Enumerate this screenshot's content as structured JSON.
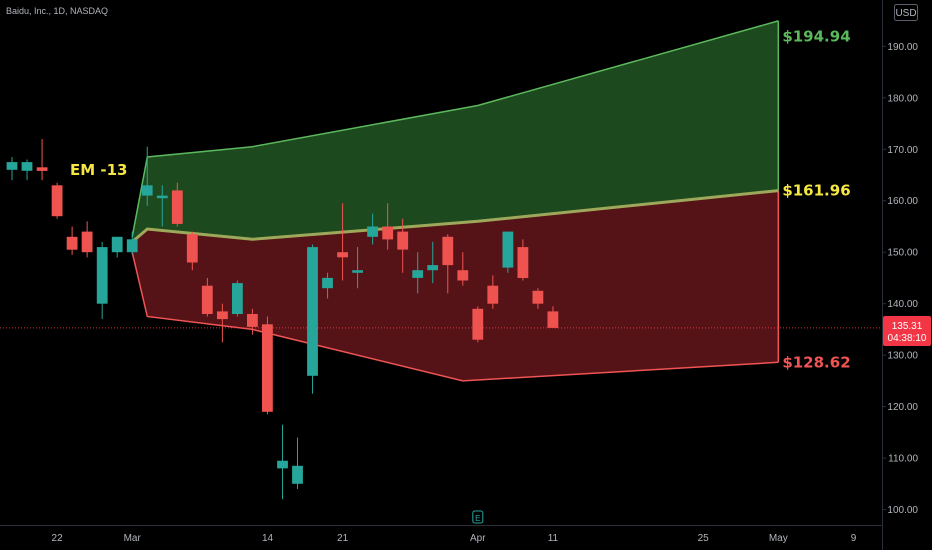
{
  "header": {
    "symbol_text": "Baidu, Inc., 1D, NASDAQ",
    "currency_button": "USD"
  },
  "annotation": {
    "em_label": "EM -13"
  },
  "projection": {
    "upper_label": "$194.94",
    "mid_label": "$161.96",
    "lower_label": "$128.62",
    "upper_color": "#5cb85c",
    "mid_color": "#f5e642",
    "lower_color": "#f05454"
  },
  "price_tag": {
    "price": "135.31",
    "countdown": "04:38:10",
    "color": "#f23645"
  },
  "event_markers": [
    {
      "letter": "E",
      "color": "#26a69a",
      "x": 30
    },
    {
      "letter": "E",
      "color": "#b84fd9",
      "x": 69
    }
  ],
  "chart_data": {
    "type": "candlestick",
    "x_axis": {
      "ticks": [
        {
          "x": 2,
          "label": "22"
        },
        {
          "x": 7,
          "label": "Mar"
        },
        {
          "x": 16,
          "label": "14"
        },
        {
          "x": 21,
          "label": "21"
        },
        {
          "x": 30,
          "label": "Apr"
        },
        {
          "x": 35,
          "label": "11"
        },
        {
          "x": 45,
          "label": "25"
        },
        {
          "x": 50,
          "label": "May"
        },
        {
          "x": 55,
          "label": "9"
        }
      ],
      "xlim": [
        -1.8,
        56.9
      ]
    },
    "y_axis": {
      "ylim": [
        97,
        199
      ],
      "ticks": [
        100,
        110,
        120,
        130,
        140,
        150,
        160,
        170,
        180,
        190
      ],
      "tick_labels": [
        "100.00",
        "110.00",
        "120.00",
        "130.00",
        "140.00",
        "150.00",
        "160.00",
        "170.00",
        "180.00",
        "190.00"
      ]
    },
    "current_price": 135.31,
    "candles": [
      {
        "x": -1,
        "o": 166.0,
        "h": 168.5,
        "l": 164.0,
        "c": 167.5
      },
      {
        "x": 0,
        "o": 165.8,
        "h": 168.0,
        "l": 164.0,
        "c": 167.5
      },
      {
        "x": 1,
        "o": 166.5,
        "h": 172.0,
        "l": 164.0,
        "c": 165.8
      },
      {
        "x": 2,
        "o": 163.0,
        "h": 163.5,
        "l": 156.5,
        "c": 157.0
      },
      {
        "x": 3,
        "o": 153.0,
        "h": 155.0,
        "l": 149.5,
        "c": 150.5
      },
      {
        "x": 4,
        "o": 154.0,
        "h": 156.0,
        "l": 149.0,
        "c": 150.0
      },
      {
        "x": 5,
        "o": 140.0,
        "h": 152.0,
        "l": 137.0,
        "c": 151.0
      },
      {
        "x": 6,
        "o": 150.0,
        "h": 153.0,
        "l": 149.0,
        "c": 153.0
      },
      {
        "x": 7,
        "o": 150.0,
        "h": 154.0,
        "l": 149.5,
        "c": 152.5
      },
      {
        "x": 8,
        "o": 161.0,
        "h": 170.5,
        "l": 159.0,
        "c": 163.0
      },
      {
        "x": 9,
        "o": 160.5,
        "h": 163.0,
        "l": 155.0,
        "c": 161.0
      },
      {
        "x": 10,
        "o": 162.0,
        "h": 163.5,
        "l": 155.0,
        "c": 155.5
      },
      {
        "x": 11,
        "o": 153.5,
        "h": 154.0,
        "l": 146.5,
        "c": 148.0
      },
      {
        "x": 12,
        "o": 143.5,
        "h": 145.0,
        "l": 137.5,
        "c": 138.0
      },
      {
        "x": 13,
        "o": 138.5,
        "h": 140.0,
        "l": 132.5,
        "c": 137.0
      },
      {
        "x": 14,
        "o": 138.0,
        "h": 144.5,
        "l": 137.5,
        "c": 144.0
      },
      {
        "x": 15,
        "o": 138.0,
        "h": 139.0,
        "l": 134.0,
        "c": 135.5
      },
      {
        "x": 16,
        "o": 136.0,
        "h": 137.5,
        "l": 118.5,
        "c": 119.0
      },
      {
        "x": 17,
        "o": 108.0,
        "h": 116.5,
        "l": 102.0,
        "c": 109.5
      },
      {
        "x": 18,
        "o": 105.0,
        "h": 114.0,
        "l": 104.0,
        "c": 108.5
      },
      {
        "x": 19,
        "o": 126.0,
        "h": 151.5,
        "l": 122.5,
        "c": 151.0
      },
      {
        "x": 20,
        "o": 143.0,
        "h": 146.0,
        "l": 141.0,
        "c": 145.0
      },
      {
        "x": 21,
        "o": 150.0,
        "h": 159.5,
        "l": 144.5,
        "c": 149.0
      },
      {
        "x": 22,
        "o": 146.0,
        "h": 151.0,
        "l": 143.0,
        "c": 146.5
      },
      {
        "x": 23,
        "o": 153.0,
        "h": 157.5,
        "l": 151.5,
        "c": 155.0
      },
      {
        "x": 24,
        "o": 155.0,
        "h": 159.5,
        "l": 150.5,
        "c": 152.5
      },
      {
        "x": 25,
        "o": 154.0,
        "h": 156.5,
        "l": 146.0,
        "c": 150.5
      },
      {
        "x": 26,
        "o": 145.0,
        "h": 150.0,
        "l": 142.0,
        "c": 146.5
      },
      {
        "x": 27,
        "o": 146.5,
        "h": 152.0,
        "l": 144.0,
        "c": 147.5
      },
      {
        "x": 28,
        "o": 153.0,
        "h": 153.5,
        "l": 142.0,
        "c": 147.5
      },
      {
        "x": 29,
        "o": 146.5,
        "h": 150.0,
        "l": 143.5,
        "c": 144.5
      },
      {
        "x": 30,
        "o": 139.0,
        "h": 139.5,
        "l": 132.5,
        "c": 133.0
      },
      {
        "x": 31,
        "o": 143.5,
        "h": 145.5,
        "l": 139.0,
        "c": 140.0
      },
      {
        "x": 32,
        "o": 147.0,
        "h": 154.0,
        "l": 146.0,
        "c": 154.0
      },
      {
        "x": 33,
        "o": 151.0,
        "h": 152.5,
        "l": 144.5,
        "c": 145.0
      },
      {
        "x": 34,
        "o": 142.5,
        "h": 143.0,
        "l": 139.0,
        "c": 140.0
      },
      {
        "x": 35,
        "o": 138.5,
        "h": 139.5,
        "l": 135.5,
        "c": 135.3
      }
    ],
    "projection_band": {
      "upper": [
        {
          "x": 7,
          "y": 153
        },
        {
          "x": 8,
          "y": 168.5
        },
        {
          "x": 15,
          "y": 170.5
        },
        {
          "x": 30,
          "y": 178.5
        },
        {
          "x": 50,
          "y": 194.94
        }
      ],
      "mid": [
        {
          "x": 7,
          "y": 152
        },
        {
          "x": 8,
          "y": 154.5
        },
        {
          "x": 15,
          "y": 152.5
        },
        {
          "x": 30,
          "y": 156
        },
        {
          "x": 50,
          "y": 161.96
        }
      ],
      "lower": [
        {
          "x": 7,
          "y": 150
        },
        {
          "x": 8,
          "y": 137.5
        },
        {
          "x": 15,
          "y": 135
        },
        {
          "x": 29,
          "y": 125
        },
        {
          "x": 50,
          "y": 128.62
        }
      ]
    }
  }
}
